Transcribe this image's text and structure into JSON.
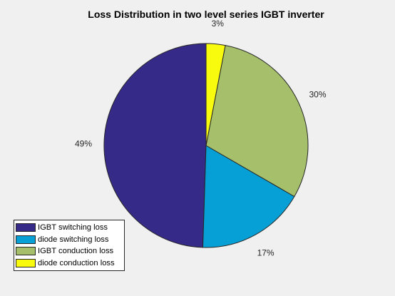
{
  "chart_data": {
    "type": "pie",
    "title": "Loss Distribution in two level series IGBT inverter",
    "categories": [
      "IGBT switching loss",
      "diode switching loss",
      "IGBT conduction loss",
      "diode conduction loss"
    ],
    "values": [
      49,
      17,
      30,
      3
    ],
    "labels": [
      "49%",
      "17%",
      "30%",
      "3%"
    ],
    "colors": [
      "#352a87",
      "#06a0d6",
      "#a5bf6b",
      "#f9fb0e"
    ],
    "legend_position": "bottom-left",
    "start": "12 o'clock",
    "direction": "counterclockwise"
  }
}
